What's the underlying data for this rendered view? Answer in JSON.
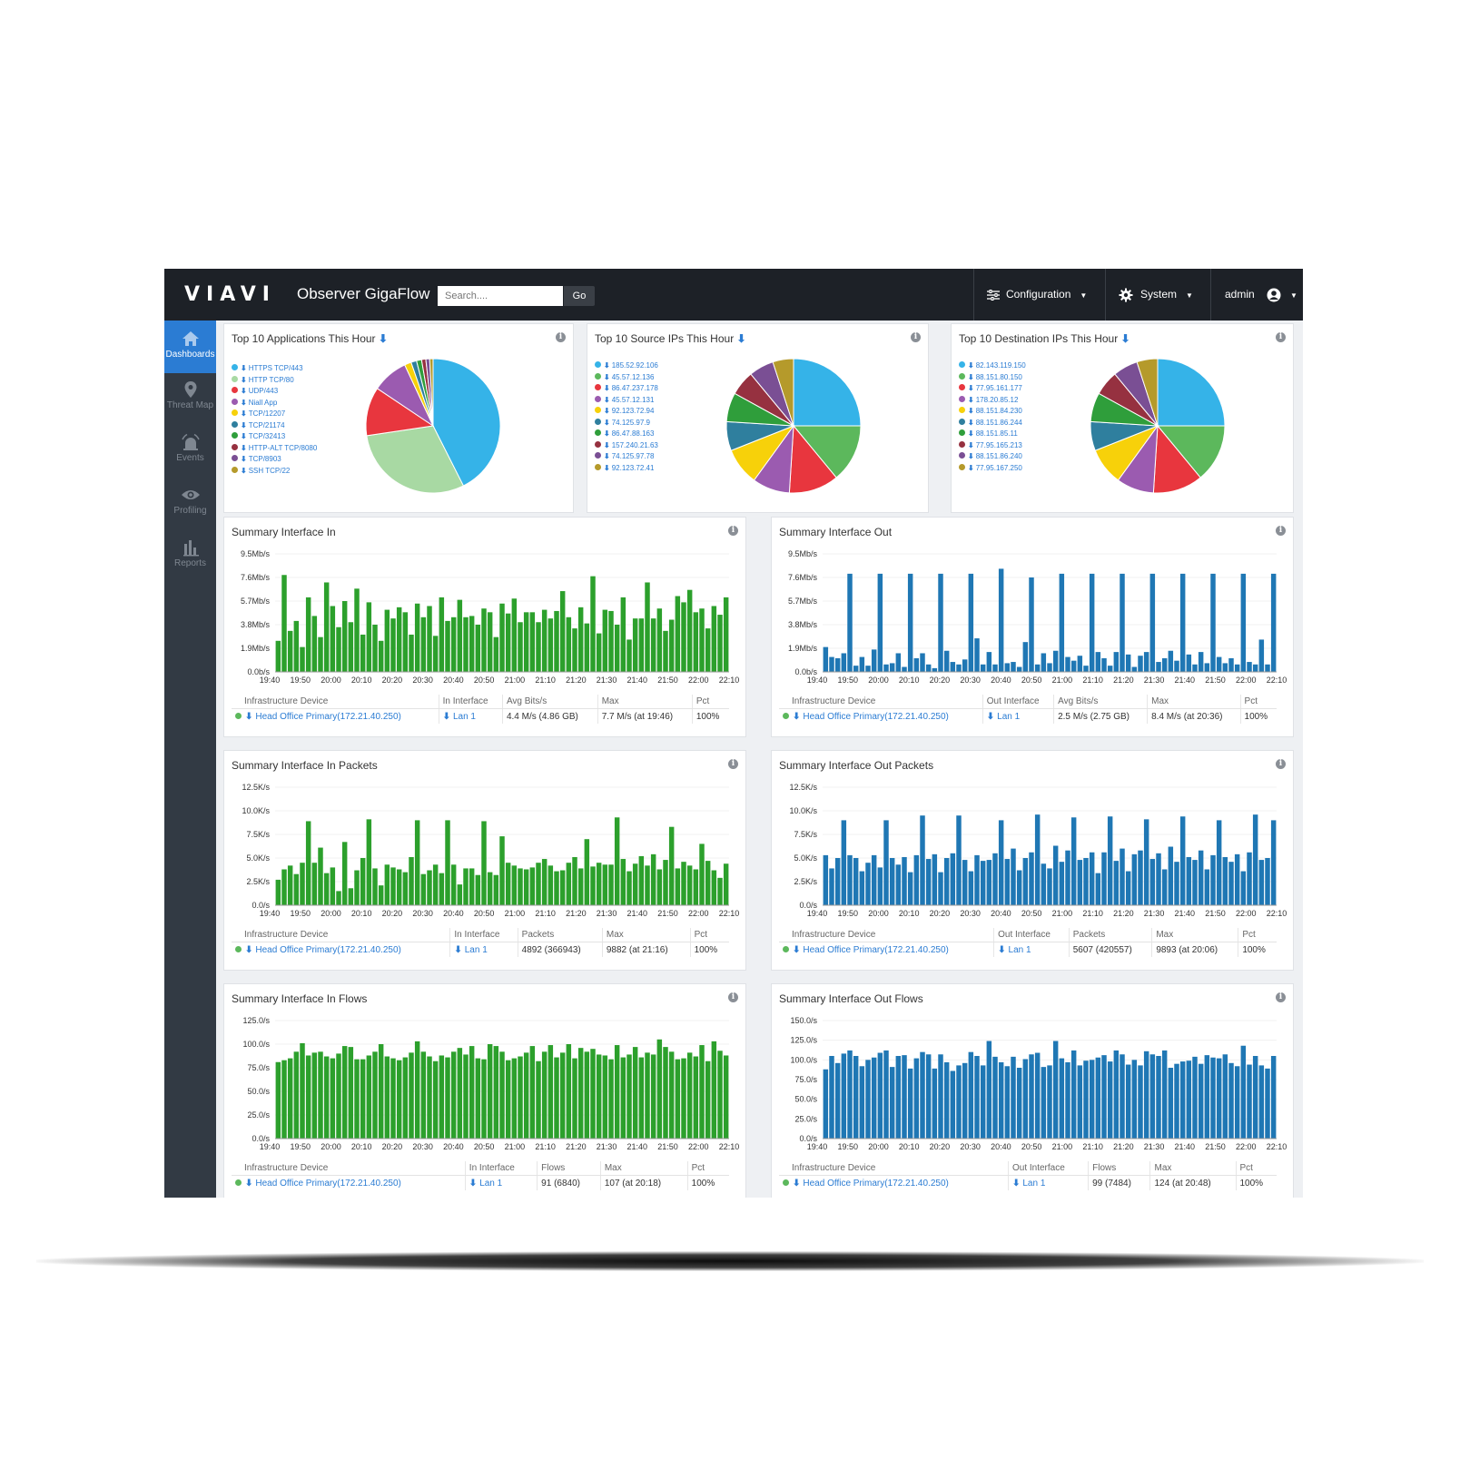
{
  "app": {
    "logo": "VIAVI",
    "title": "Observer GigaFlow",
    "search_placeholder": "Search....",
    "go_label": "Go"
  },
  "nav": {
    "configuration": "Configuration",
    "system": "System",
    "user": "admin"
  },
  "sidebar": {
    "items": [
      {
        "label": "Dashboards",
        "icon": "home-icon",
        "active": true
      },
      {
        "label": "Threat Map",
        "icon": "map-pin-icon",
        "active": false
      },
      {
        "label": "Events",
        "icon": "alarm-icon",
        "active": false
      },
      {
        "label": "Profiling",
        "icon": "eye-icon",
        "active": false
      },
      {
        "label": "Reports",
        "icon": "bar-chart-icon",
        "active": false
      }
    ]
  },
  "colors": {
    "brand_blue": "#2b7cd3",
    "bar_green": "#2ca02c",
    "bar_blue": "#1f77b4",
    "topbar": "#1d2127",
    "sidebar": "#323a44",
    "pie_palette": [
      "#35b3e8",
      "#a8d9a3",
      "#e8363e",
      "#9b5bb0",
      "#f7d10a",
      "#2f7f9e",
      "#2f9e3b",
      "#963140",
      "#7a4f94",
      "#b59a2b"
    ]
  },
  "pies": [
    {
      "title": "Top 10 Applications This Hour",
      "legend": [
        "HTTPS TCP/443",
        "HTTP TCP/80",
        "UDP/443",
        "Niall App",
        "TCP/12207",
        "TCP/21174",
        "TCP/32413",
        "HTTP-ALT TCP/8080",
        "TCP/8903",
        "SSH TCP/22"
      ],
      "colors": [
        "#35b3e8",
        "#a8d9a3",
        "#e8363e",
        "#9b5bb0",
        "#f7d10a",
        "#2f7f9e",
        "#2f9e3b",
        "#963140",
        "#7a4f94",
        "#b59a2b"
      ],
      "values": [
        41.7,
        29.5,
        11.5,
        8.5,
        1.6,
        1.3,
        1.2,
        1.0,
        0.9,
        0.8
      ]
    },
    {
      "title": "Top 10 Source IPs This Hour",
      "legend": [
        "185.52.92.106",
        "45.57.12.136",
        "86.47.237.178",
        "45.57.12.131",
        "92.123.72.94",
        "74.125.97.9",
        "86.47.88.163",
        "157.240.21.63",
        "74.125.97.78",
        "92.123.72.41"
      ],
      "colors": [
        "#35b3e8",
        "#5cb85c",
        "#e8363e",
        "#9b5bb0",
        "#f7d10a",
        "#2f7f9e",
        "#2f9e3b",
        "#963140",
        "#7a4f94",
        "#b59a2b"
      ],
      "values": [
        25,
        14,
        12,
        9,
        9,
        7,
        7,
        6,
        6,
        5
      ]
    },
    {
      "title": "Top 10 Destination IPs This Hour",
      "legend": [
        "82.143.119.150",
        "88.151.80.150",
        "77.95.161.177",
        "178.20.85.12",
        "88.151.84.230",
        "88.151.86.244",
        "88.151.85.11",
        "77.95.165.213",
        "88.151.86.240",
        "77.95.167.250"
      ],
      "colors": [
        "#35b3e8",
        "#5cb85c",
        "#e8363e",
        "#9b5bb0",
        "#f7d10a",
        "#2f7f9e",
        "#2f9e3b",
        "#963140",
        "#7a4f94",
        "#b59a2b"
      ],
      "values": [
        25,
        14,
        12,
        9,
        9,
        7,
        7,
        6,
        6,
        5
      ]
    }
  ],
  "charts": [
    {
      "title": "Summary Interface In",
      "color": "#2ca02c",
      "ylim": [
        0,
        9.5
      ],
      "yticks": [
        "9.5Mb/s",
        "7.6Mb/s",
        "5.7Mb/s",
        "3.8Mb/s",
        "1.9Mb/s",
        "0.0b/s"
      ],
      "xticks": [
        "19:40",
        "19:50",
        "20:00",
        "20:10",
        "20:20",
        "20:30",
        "20:40",
        "20:50",
        "21:00",
        "21:10",
        "21:20",
        "21:30",
        "21:40",
        "21:50",
        "22:00",
        "22:10"
      ],
      "values": [
        2.5,
        7.8,
        3.3,
        4.1,
        2.0,
        6.0,
        4.5,
        2.8,
        7.2,
        5.3,
        3.6,
        5.7,
        4.0,
        6.7,
        3.0,
        5.6,
        3.8,
        2.5,
        5.0,
        4.3,
        5.2,
        4.8,
        3.0,
        5.5,
        4.4,
        5.3,
        2.9,
        6.0,
        4.1,
        4.4,
        5.8,
        4.4,
        4.5,
        3.8,
        5.1,
        4.8,
        2.8,
        5.5,
        4.7,
        5.9,
        4.0,
        4.8,
        4.8,
        4.0,
        5.0,
        4.3,
        4.9,
        6.5,
        4.4,
        3.5,
        5.2,
        3.9,
        7.7,
        3.1,
        5.0,
        4.9,
        3.8,
        6.0,
        2.6,
        4.3,
        4.3,
        7.2,
        4.3,
        5.1,
        3.3,
        4.2,
        6.1,
        5.6,
        6.6,
        4.8,
        5.1,
        3.5,
        5.3,
        4.6,
        6.0
      ]
    },
    {
      "title": "Summary Interface Out",
      "color": "#1f77b4",
      "ylim": [
        0,
        9.5
      ],
      "yticks": [
        "9.5Mb/s",
        "7.6Mb/s",
        "5.7Mb/s",
        "3.8Mb/s",
        "1.9Mb/s",
        "0.0b/s"
      ],
      "xticks": [
        "19:40",
        "19:50",
        "20:00",
        "20:10",
        "20:20",
        "20:30",
        "20:40",
        "20:50",
        "21:00",
        "21:10",
        "21:20",
        "21:30",
        "21:40",
        "21:50",
        "22:00",
        "22:10"
      ],
      "values": [
        2.0,
        1.2,
        1.1,
        1.5,
        7.9,
        0.5,
        1.2,
        0.5,
        1.8,
        7.9,
        0.6,
        0.7,
        1.5,
        0.4,
        7.9,
        1.1,
        1.5,
        0.6,
        0.3,
        7.9,
        1.7,
        0.8,
        0.6,
        1.0,
        7.9,
        2.7,
        0.6,
        1.6,
        0.6,
        8.3,
        0.7,
        0.8,
        0.4,
        2.4,
        7.6,
        0.6,
        1.5,
        0.7,
        1.7,
        7.9,
        1.2,
        0.9,
        1.3,
        0.5,
        7.9,
        1.6,
        1.1,
        0.5,
        1.6,
        7.9,
        1.4,
        0.4,
        1.3,
        1.6,
        7.9,
        0.8,
        1.1,
        1.7,
        0.9,
        7.9,
        1.4,
        0.6,
        1.6,
        0.7,
        7.9,
        1.2,
        0.7,
        1.1,
        0.6,
        7.9,
        0.8,
        0.6,
        2.6,
        0.6,
        7.9
      ]
    },
    {
      "title": "Summary Interface In Packets",
      "color": "#2ca02c",
      "ylim": [
        0,
        12.5
      ],
      "yticks": [
        "12.5K/s",
        "10.0K/s",
        "7.5K/s",
        "5.0K/s",
        "2.5K/s",
        "0.0/s"
      ],
      "xticks": [
        "19:40",
        "19:50",
        "20:00",
        "20:10",
        "20:20",
        "20:30",
        "20:40",
        "20:50",
        "21:00",
        "21:10",
        "21:20",
        "21:30",
        "21:40",
        "21:50",
        "22:00",
        "22:10"
      ],
      "values": [
        2.7,
        3.8,
        4.2,
        3.3,
        4.5,
        8.9,
        4.5,
        6.1,
        3.4,
        4.0,
        1.5,
        6.7,
        1.8,
        3.7,
        5.0,
        9.1,
        3.9,
        2.1,
        4.3,
        4.0,
        3.8,
        3.5,
        5.1,
        9.0,
        3.3,
        3.7,
        4.3,
        3.4,
        9.0,
        4.3,
        2.2,
        3.9,
        3.9,
        3.2,
        8.9,
        3.5,
        3.2,
        7.3,
        4.5,
        4.2,
        3.9,
        3.8,
        4.0,
        4.5,
        4.9,
        4.2,
        3.6,
        3.7,
        4.5,
        5.1,
        3.9,
        7.0,
        4.1,
        4.5,
        4.3,
        4.3,
        9.3,
        4.9,
        3.6,
        4.4,
        5.2,
        4.2,
        5.4,
        3.8,
        4.8,
        8.3,
        3.9,
        4.6,
        4.2,
        3.8,
        6.5,
        4.7,
        3.7,
        2.9,
        4.4
      ]
    },
    {
      "title": "Summary Interface Out Packets",
      "color": "#1f77b4",
      "ylim": [
        0,
        12.5
      ],
      "yticks": [
        "12.5K/s",
        "10.0K/s",
        "7.5K/s",
        "5.0K/s",
        "2.5K/s",
        "0.0/s"
      ],
      "xticks": [
        "19:40",
        "19:50",
        "20:00",
        "20:10",
        "20:20",
        "20:30",
        "20:40",
        "20:50",
        "21:00",
        "21:10",
        "21:20",
        "21:30",
        "21:40",
        "21:50",
        "22:00",
        "22:10"
      ],
      "values": [
        5.3,
        3.9,
        5.0,
        9.0,
        5.3,
        5.0,
        3.6,
        4.5,
        5.3,
        4.0,
        9.0,
        5.0,
        4.3,
        5.1,
        3.5,
        5.3,
        9.5,
        4.9,
        5.4,
        3.5,
        5.0,
        5.5,
        9.5,
        4.8,
        3.6,
        5.3,
        4.7,
        4.8,
        5.5,
        9.0,
        4.9,
        6.0,
        3.7,
        5.0,
        5.6,
        9.6,
        4.4,
        3.9,
        6.3,
        4.6,
        5.8,
        9.3,
        4.8,
        5.0,
        5.6,
        3.4,
        5.6,
        9.4,
        4.7,
        6.0,
        3.6,
        5.4,
        5.8,
        9.1,
        4.9,
        5.5,
        3.8,
        6.2,
        4.6,
        9.4,
        5.1,
        4.8,
        5.8,
        3.8,
        5.3,
        9.0,
        5.1,
        4.6,
        5.4,
        3.6,
        5.6,
        9.6,
        4.8,
        5.0,
        9.0
      ]
    },
    {
      "title": "Summary Interface In Flows",
      "color": "#2ca02c",
      "ylim": [
        0,
        125
      ],
      "yticks": [
        "125.0/s",
        "100.0/s",
        "75.0/s",
        "50.0/s",
        "25.0/s",
        "0.0/s"
      ],
      "xticks": [
        "19:40",
        "19:50",
        "20:00",
        "20:10",
        "20:20",
        "20:30",
        "20:40",
        "20:50",
        "21:00",
        "21:10",
        "21:20",
        "21:30",
        "21:40",
        "21:50",
        "22:00",
        "22:10"
      ],
      "values": [
        81,
        83,
        85,
        92,
        101,
        88,
        91,
        92,
        87,
        85,
        90,
        98,
        97,
        84,
        84,
        88,
        92,
        100,
        87,
        85,
        83,
        86,
        91,
        103,
        92,
        87,
        82,
        88,
        86,
        92,
        96,
        89,
        98,
        85,
        84,
        100,
        98,
        92,
        83,
        85,
        87,
        91,
        98,
        82,
        92,
        99,
        86,
        91,
        100,
        85,
        96,
        92,
        95,
        89,
        88,
        84,
        99,
        86,
        89,
        97,
        86,
        91,
        89,
        105,
        97,
        92,
        84,
        85,
        91,
        87,
        99,
        82,
        103,
        93,
        88
      ]
    },
    {
      "title": "Summary Interface Out Flows",
      "color": "#1f77b4",
      "ylim": [
        0,
        150
      ],
      "yticks": [
        "150.0/s",
        "125.0/s",
        "100.0/s",
        "75.0/s",
        "50.0/s",
        "25.0/s",
        "0.0/s"
      ],
      "xticks": [
        "19:40",
        "19:50",
        "20:00",
        "20:10",
        "20:20",
        "20:30",
        "20:40",
        "20:50",
        "21:00",
        "21:10",
        "21:20",
        "21:30",
        "21:40",
        "21:50",
        "22:00",
        "22:10"
      ],
      "values": [
        88,
        105,
        96,
        108,
        112,
        105,
        92,
        100,
        103,
        109,
        112,
        91,
        105,
        106,
        89,
        102,
        110,
        107,
        89,
        107,
        97,
        86,
        93,
        96,
        110,
        105,
        93,
        124,
        104,
        97,
        92,
        104,
        90,
        101,
        107,
        109,
        91,
        93,
        124,
        102,
        97,
        112,
        93,
        99,
        100,
        103,
        106,
        98,
        112,
        107,
        94,
        100,
        93,
        111,
        107,
        105,
        112,
        90,
        95,
        98,
        99,
        104,
        95,
        106,
        103,
        102,
        107,
        96,
        92,
        118,
        94,
        105,
        93,
        89,
        105
      ]
    }
  ],
  "tables": [
    {
      "headers": [
        "Infrastructure Device",
        "In Interface",
        "Avg Bits/s",
        "Max",
        "Pct"
      ],
      "row": [
        "Head Office Primary(172.21.40.250)",
        "Lan 1",
        "4.4 M/s (4.86 GB)",
        "7.7 M/s (at 19:46)",
        "100%"
      ]
    },
    {
      "headers": [
        "Infrastructure Device",
        "Out Interface",
        "Avg Bits/s",
        "Max",
        "Pct"
      ],
      "row": [
        "Head Office Primary(172.21.40.250)",
        "Lan 1",
        "2.5 M/s (2.75 GB)",
        "8.4 M/s (at 20:36)",
        "100%"
      ]
    },
    {
      "headers": [
        "Infrastructure Device",
        "In Interface",
        "Packets",
        "Max",
        "Pct"
      ],
      "row": [
        "Head Office Primary(172.21.40.250)",
        "Lan 1",
        "4892 (366943)",
        "9882 (at 21:16)",
        "100%"
      ]
    },
    {
      "headers": [
        "Infrastructure Device",
        "Out Interface",
        "Packets",
        "Max",
        "Pct"
      ],
      "row": [
        "Head Office Primary(172.21.40.250)",
        "Lan 1",
        "5607 (420557)",
        "9893 (at 20:06)",
        "100%"
      ]
    },
    {
      "headers": [
        "Infrastructure Device",
        "In Interface",
        "Flows",
        "Max",
        "Pct"
      ],
      "row": [
        "Head Office Primary(172.21.40.250)",
        "Lan 1",
        "91 (6840)",
        "107 (at 20:18)",
        "100%"
      ]
    },
    {
      "headers": [
        "Infrastructure Device",
        "Out Interface",
        "Flows",
        "Max",
        "Pct"
      ],
      "row": [
        "Head Office Primary(172.21.40.250)",
        "Lan 1",
        "99 (7484)",
        "124 (at 20:48)",
        "100%"
      ]
    }
  ]
}
